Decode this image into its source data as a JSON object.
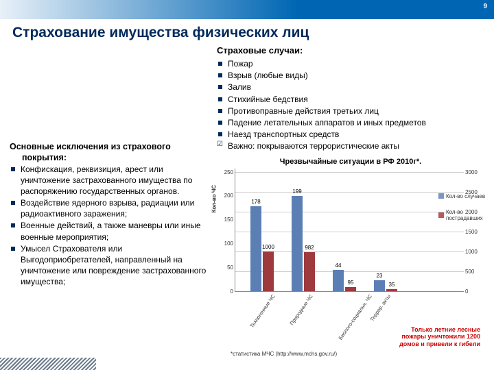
{
  "page_number": "9",
  "title": "Страхование имущества физических лиц",
  "cases": {
    "heading": "Страховые случаи:",
    "items": [
      "Пожар",
      "Взрыв (любые виды)",
      "Залив",
      "Стихийные бедствия",
      "Противоправные действия третьих лиц",
      "Падение летательных аппаратов и иных предметов",
      "Наезд транспортных средств",
      "Важно: покрываются террористические акты"
    ]
  },
  "exclusions": {
    "heading_line1": "Основные исключения из страхового",
    "heading_line2": "покрытия:",
    "items": [
      "Конфискация, реквизиция, арест или уничтожение застрахованного имущества по распоряжению государственных органов.",
      "Воздействие ядерного взрыва, радиации или радиоактивного заражения;",
      "Военные действий, а также маневры или иные военные мероприятия;",
      "Умысел Страхователя или Выгодоприобретателей, направленный на уничтожение или повреждение застрахованного имущества;"
    ]
  },
  "chart": {
    "title": "Чрезвычайные ситуации в РФ  2010г*.",
    "type": "bar",
    "y_left_label": "Кол-во ЧС",
    "y_left_ticks": [
      "0",
      "50",
      "100",
      "150",
      "200",
      "250"
    ],
    "y_left_max": 250,
    "y_right_ticks": [
      "0",
      "500",
      "1000",
      "1500",
      "2000",
      "2500",
      "3000"
    ],
    "y_right_max": 3000,
    "categories": [
      "Техногенные ЧС",
      "Природные ЧС",
      "Биолого-социальн. ЧС",
      "Террор. акты"
    ],
    "series_cases": {
      "label": "Кол-во случаев",
      "color": "#5b7fb5",
      "values": [
        178,
        199,
        44,
        23
      ]
    },
    "series_victims": {
      "label": "Кол-во пострадавших",
      "color": "#9e3a3e",
      "values": [
        1000,
        982,
        95,
        35
      ]
    },
    "group_x_positions": [
      22,
      82,
      142,
      202
    ],
    "legend_colors": {
      "cases": "#7a96c6",
      "victims": "#b25a5e"
    },
    "red_note_line1": "Только летние лесные",
    "red_note_line2": "пожары уничтожили 1200",
    "red_note_line3": "домов и привели к гибели",
    "footnote": "*статистика МЧС (http://www.mchs.gov.ru/)"
  }
}
